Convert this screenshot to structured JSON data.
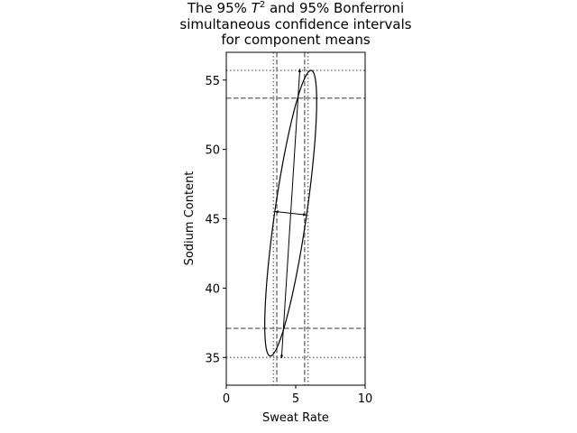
{
  "chart_data": {
    "type": "scatter",
    "title_lines": [
      "The 95% T² and 95% Bonferroni",
      "simultaneous confidence intervals",
      "for component means"
    ],
    "xlabel": "Sweat Rate",
    "ylabel": "Sodium Content",
    "xlim": [
      0,
      10
    ],
    "ylim": [
      33,
      57
    ],
    "xticks": [
      0,
      5,
      10
    ],
    "yticks": [
      35,
      40,
      45,
      50,
      55
    ],
    "grid": false,
    "ellipse": {
      "center": [
        4.64,
        45.4
      ],
      "semi_major": 10.4,
      "semi_minor": 1.15,
      "major_axis_angle_deg": 81.8
    },
    "axis_arrows": {
      "major": {
        "from": [
          3.98,
          34.95
        ],
        "to": [
          5.3,
          55.8
        ]
      },
      "minor": {
        "from": [
          3.52,
          45.52
        ],
        "to": [
          5.76,
          45.28
        ]
      }
    },
    "t2_intervals": {
      "x": [
        3.4,
        5.88
      ],
      "y": [
        35.0,
        55.7
      ]
    },
    "bonferroni_intervals": {
      "x": [
        3.64,
        5.64
      ],
      "y": [
        37.1,
        53.7
      ]
    }
  }
}
